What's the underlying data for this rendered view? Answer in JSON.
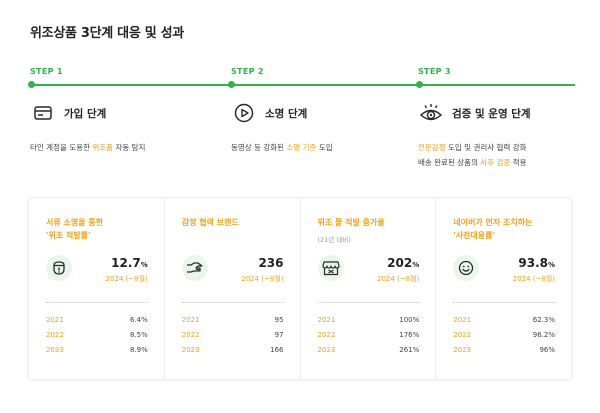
{
  "title": "위조상품 3단계 대응 및 성과",
  "steps": [
    {
      "label": "STEP 1",
      "title": "가입 단계",
      "icon": "card-icon",
      "desc_lines": [
        [
          {
            "t": "타인 계정을 도용한 "
          },
          {
            "t": "위조품",
            "hl": true
          },
          {
            "t": " 자동 탐지"
          }
        ]
      ]
    },
    {
      "label": "STEP 2",
      "title": "소명 단계",
      "icon": "play-icon",
      "desc_lines": [
        [
          {
            "t": "동영상 등 강화된 "
          },
          {
            "t": "소명 기준",
            "hl": true
          },
          {
            "t": " 도입"
          }
        ]
      ]
    },
    {
      "label": "STEP 3",
      "title": "검증 및 운영 단계",
      "icon": "eye-icon",
      "desc_lines": [
        [
          {
            "t": "전문감정",
            "hl": true
          },
          {
            "t": " 도입 및 권리사 협력 강화"
          }
        ],
        [
          {
            "t": "배송 완료된 상품의 "
          },
          {
            "t": "사후 검증",
            "hl": true
          },
          {
            "t": " 적용"
          }
        ]
      ]
    }
  ],
  "cards": [
    {
      "title_lines": [
        "서류 소명을 통한",
        "'위조 적발률'"
      ],
      "sub": "",
      "icon": "warning-icon",
      "value": "12.7",
      "unit": "%",
      "note": "2024 (~8월)",
      "years": [
        {
          "year": "2021",
          "val": "6.4%"
        },
        {
          "year": "2022",
          "val": "8.5%"
        },
        {
          "year": "2023",
          "val": "8.9%"
        }
      ]
    },
    {
      "title_lines": [
        "감정 협력 브랜드"
      ],
      "sub": "",
      "icon": "handshake-icon",
      "value": "236",
      "unit": "",
      "note": "2024 (~8월)",
      "years": [
        {
          "year": "2021",
          "val": "95"
        },
        {
          "year": "2022",
          "val": "97"
        },
        {
          "year": "2023",
          "val": "166"
        }
      ]
    },
    {
      "title_lines": [
        "위조 몰 적발 증가율"
      ],
      "sub": "(21년 대비)",
      "icon": "store-icon",
      "value": "202",
      "unit": "%",
      "note": "2024 (~8월)",
      "years": [
        {
          "year": "2021",
          "val": "100%"
        },
        {
          "year": "2022",
          "val": "176%"
        },
        {
          "year": "2023",
          "val": "261%"
        }
      ]
    },
    {
      "title_lines": [
        "네이버가 먼저 조치하는",
        "'사전대응률'"
      ],
      "sub": "",
      "icon": "smile-icon",
      "value": "93.8",
      "unit": "%",
      "note": "2024 (~8월)",
      "years": [
        {
          "year": "2021",
          "val": "62.3%"
        },
        {
          "year": "2022",
          "val": "96.2%"
        },
        {
          "year": "2023",
          "val": "96%"
        }
      ]
    }
  ],
  "colors": {
    "accent_green": "#2fb54a",
    "highlight_orange": "#f0a21a",
    "icon_bg": "#eaf6ec"
  }
}
